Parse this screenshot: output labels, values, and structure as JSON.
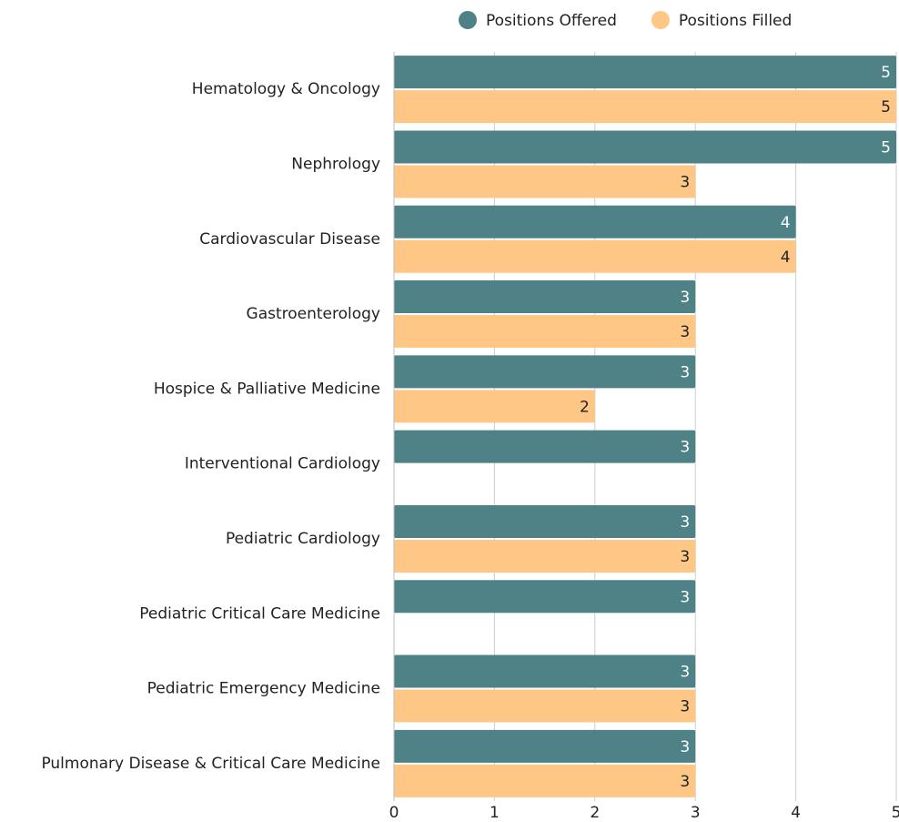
{
  "chart_data": {
    "type": "barh",
    "categories": [
      "Hematology & Oncology",
      "Nephrology",
      "Cardiovascular Disease",
      "Gastroenterology",
      "Hospice & Palliative Medicine",
      "Interventional Cardiology",
      "Pediatric Cardiology",
      "Pediatric Critical Care Medicine",
      "Pediatric Emergency Medicine",
      "Pulmonary Disease & Critical Care Medicine"
    ],
    "series": [
      {
        "name": "Positions Offered",
        "color": "#4e8286",
        "values": [
          5,
          5,
          4,
          3,
          3,
          3,
          3,
          3,
          3,
          3
        ]
      },
      {
        "name": "Positions Filled",
        "color": "#ffc785",
        "values": [
          5,
          3,
          4,
          3,
          2,
          null,
          3,
          null,
          3,
          3
        ]
      }
    ],
    "xlim": [
      0,
      5
    ],
    "xticks": [
      0,
      1,
      2,
      3,
      4,
      5
    ],
    "grid": true,
    "legend": "top"
  }
}
